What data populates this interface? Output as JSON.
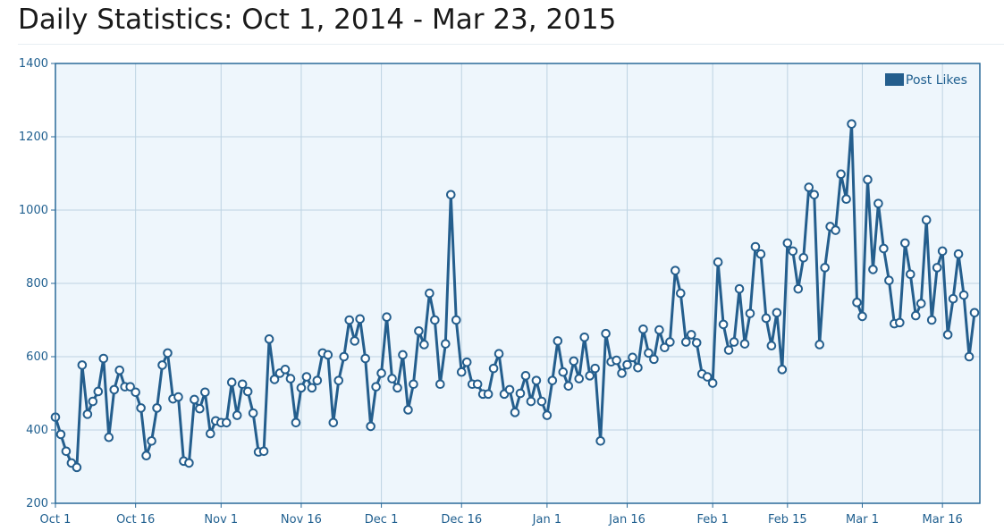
{
  "page": {
    "title": "Daily Statistics: Oct 1, 2014 - Mar 23, 2015"
  },
  "colors": {
    "series": "#245e8d",
    "marker_fill": "#ffffff",
    "plot_background": "#eef6fc",
    "grid": "#bdd3e2",
    "axis": "#2a6a9a",
    "tick_label": "#1f5f8f"
  },
  "chart_data": {
    "type": "line",
    "title": "",
    "xlabel": "",
    "ylabel": "",
    "x_start": "2014-10-01",
    "x_end": "2015-03-23",
    "ylim": [
      200,
      1400
    ],
    "yticks": [
      200,
      400,
      600,
      800,
      1000,
      1200,
      1400
    ],
    "xticks": [
      {
        "date": "2014-10-01",
        "label": "Oct 1"
      },
      {
        "date": "2014-10-16",
        "label": "Oct 16"
      },
      {
        "date": "2014-11-01",
        "label": "Nov 1"
      },
      {
        "date": "2014-11-16",
        "label": "Nov 16"
      },
      {
        "date": "2014-12-01",
        "label": "Dec 1"
      },
      {
        "date": "2014-12-16",
        "label": "Dec 16"
      },
      {
        "date": "2015-01-01",
        "label": "Jan 1"
      },
      {
        "date": "2015-01-16",
        "label": "Jan 16"
      },
      {
        "date": "2015-02-01",
        "label": "Feb 1"
      },
      {
        "date": "2015-02-15",
        "label": "Feb 15"
      },
      {
        "date": "2015-03-01",
        "label": "Mar 1"
      },
      {
        "date": "2015-03-16",
        "label": "Mar 16"
      }
    ],
    "grid": true,
    "legend_position": "top-right",
    "series": [
      {
        "name": "Post Likes",
        "values": [
          435,
          388,
          342,
          310,
          298,
          577,
          443,
          478,
          505,
          595,
          380,
          510,
          563,
          518,
          518,
          503,
          460,
          330,
          370,
          460,
          577,
          610,
          485,
          490,
          315,
          310,
          483,
          458,
          503,
          390,
          425,
          420,
          420,
          530,
          440,
          525,
          505,
          446,
          340,
          342,
          648,
          538,
          555,
          565,
          540,
          420,
          515,
          545,
          515,
          535,
          610,
          605,
          420,
          535,
          600,
          700,
          643,
          703,
          595,
          410,
          518,
          555,
          708,
          540,
          515,
          605,
          455,
          525,
          670,
          633,
          773,
          700,
          525,
          635,
          1042,
          700,
          558,
          585,
          525,
          525,
          498,
          498,
          568,
          608,
          498,
          510,
          448,
          500,
          548,
          478,
          535,
          478,
          440,
          535,
          643,
          558,
          520,
          588,
          540,
          653,
          548,
          568,
          370,
          663,
          586,
          590,
          555,
          578,
          598,
          570,
          675,
          610,
          593,
          673,
          625,
          640,
          835,
          773,
          640,
          660,
          638,
          553,
          545,
          528,
          858,
          688,
          618,
          640,
          785,
          635,
          718,
          900,
          880,
          705,
          630,
          720,
          565,
          910,
          888,
          785,
          870,
          1062,
          1042,
          633,
          843,
          955,
          945,
          1098,
          1030,
          1235,
          748,
          710,
          1083,
          838,
          1018,
          895,
          808,
          690,
          693,
          910,
          825,
          712,
          745,
          973,
          700,
          843,
          888,
          660,
          758,
          880,
          768,
          600,
          720
        ]
      }
    ]
  }
}
